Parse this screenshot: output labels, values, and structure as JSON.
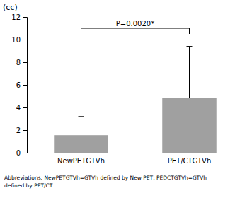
{
  "chart_data": {
    "type": "bar",
    "y_label": "(cc)",
    "categories": [
      "NewPETGTVh",
      "PET/CTGTVh"
    ],
    "values": [
      1.55,
      4.85
    ],
    "errors": [
      1.65,
      4.55
    ],
    "color": "#a0a0a0",
    "ylim": [
      0,
      12
    ],
    "yticks": [
      0,
      2,
      4,
      6,
      8,
      10,
      12
    ],
    "grid": false,
    "annotation": "P=0.0020*",
    "footnote": [
      "Abbreviations: NewPETGTVh=GTVh defined by New PET, PEDCTGTVh=GTVh",
      "defined by PET/CT"
    ]
  }
}
